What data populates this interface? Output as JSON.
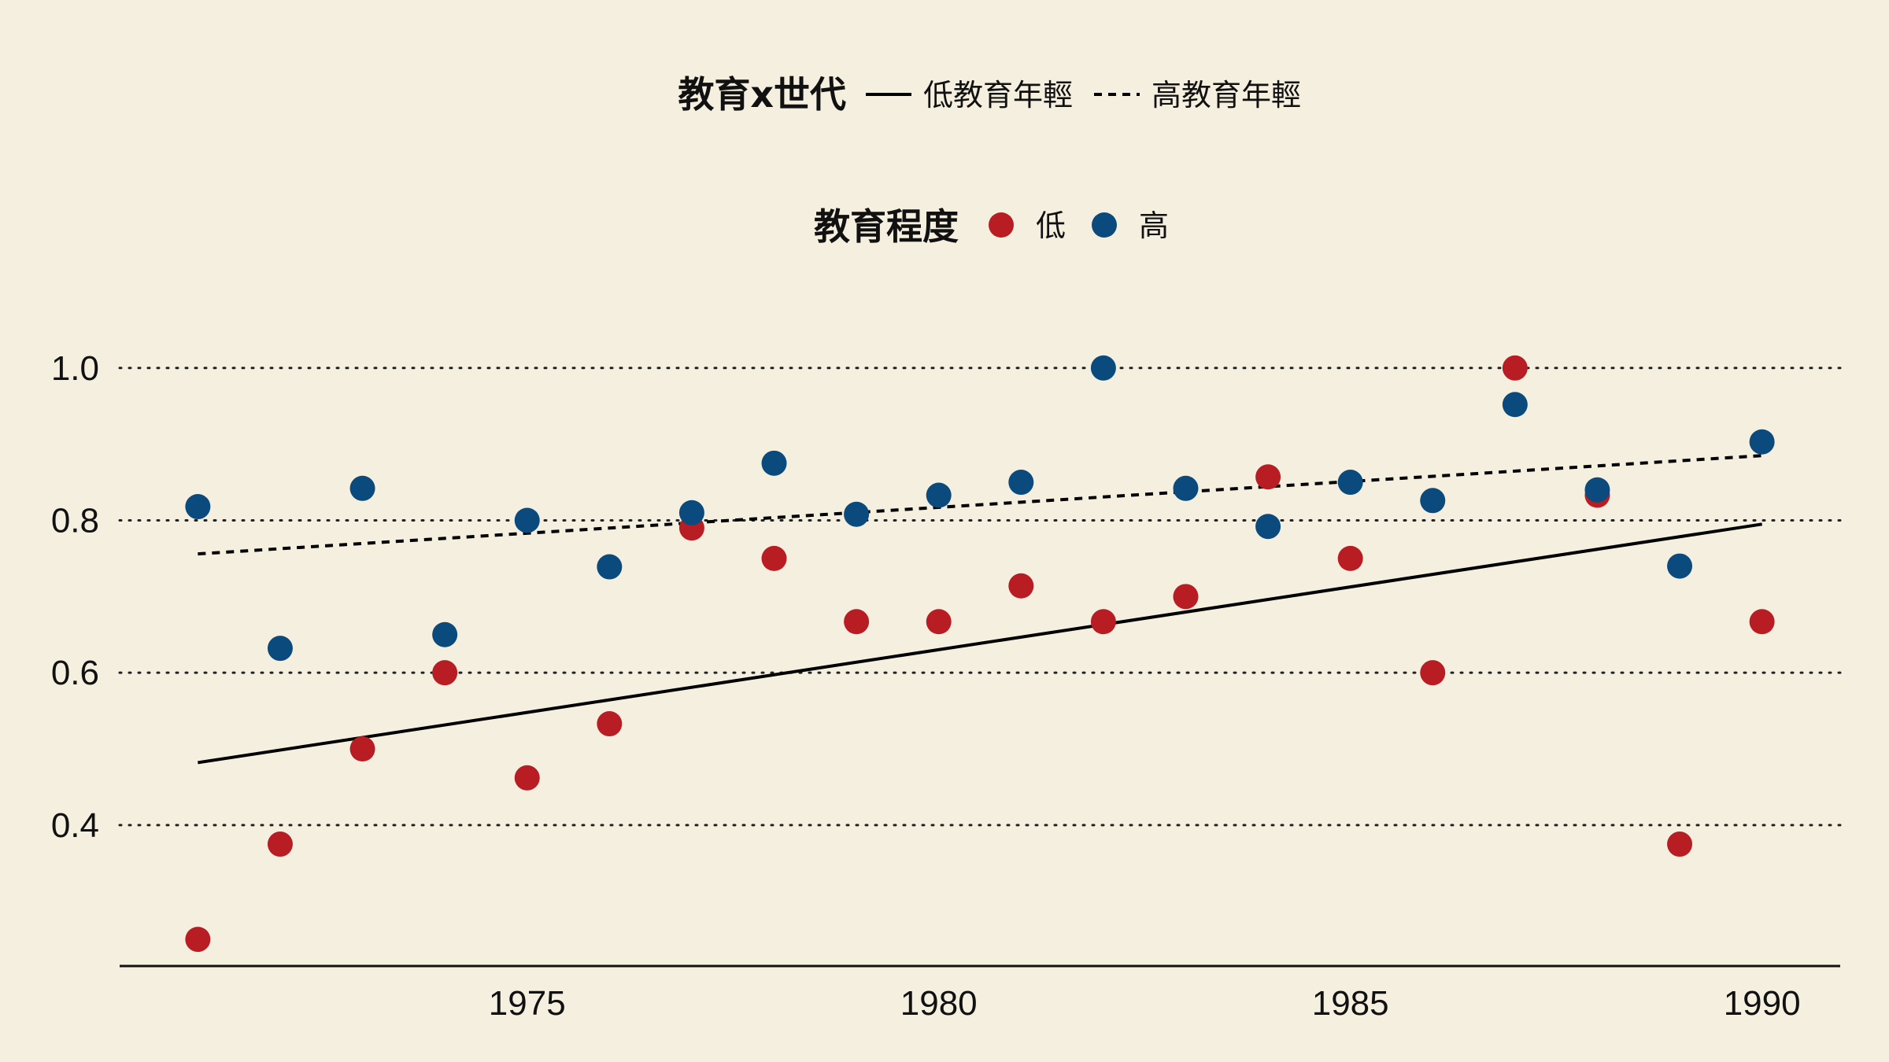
{
  "chart_data": {
    "type": "scatter",
    "title": "",
    "xlabel": "",
    "ylabel": "",
    "xlim": [
      1970.05,
      1990.95
    ],
    "ylim": [
      0.215,
      1.07
    ],
    "x_ticks": [
      1975,
      1980,
      1985,
      1990
    ],
    "y_ticks": [
      0.4,
      0.6,
      0.8,
      1.0
    ],
    "y_tick_labels": [
      "0.4",
      "0.6",
      "0.8",
      "1.0"
    ],
    "x_tick_labels": [
      "1975",
      "1980",
      "1985",
      "1990"
    ],
    "grid": "horizontal dotted",
    "background_color": "#f5efe0",
    "legend_lines": {
      "title": "教育x世代",
      "placement": "top-center",
      "entries": [
        {
          "label": "低教育年輕",
          "style": "solid"
        },
        {
          "label": "高教育年輕",
          "style": "dashed"
        }
      ]
    },
    "legend_points": {
      "title": "教育程度",
      "placement": "top-center",
      "entries": [
        {
          "label": "低",
          "color": "#b81d24"
        },
        {
          "label": "高",
          "color": "#0b4a7c"
        }
      ]
    },
    "series": [
      {
        "name": "低",
        "color": "#b81d24",
        "x": [
          1971,
          1972,
          1973,
          1974,
          1975,
          1976,
          1977,
          1978,
          1979,
          1980,
          1981,
          1982,
          1983,
          1984,
          1985,
          1986,
          1987,
          1988,
          1989,
          1990
        ],
        "y": [
          0.25,
          0.375,
          0.5,
          0.6,
          0.462,
          0.533,
          0.79,
          0.75,
          0.667,
          0.667,
          0.714,
          0.667,
          0.7,
          0.857,
          0.75,
          0.6,
          1.0,
          0.833,
          0.375,
          0.667
        ]
      },
      {
        "name": "高",
        "color": "#0b4a7c",
        "x": [
          1971,
          1972,
          1973,
          1974,
          1975,
          1976,
          1977,
          1978,
          1979,
          1980,
          1981,
          1982,
          1983,
          1984,
          1985,
          1986,
          1987,
          1988,
          1989,
          1990
        ],
        "y": [
          0.818,
          0.632,
          0.842,
          0.65,
          0.8,
          0.739,
          0.81,
          0.875,
          0.808,
          0.833,
          0.85,
          1.0,
          0.842,
          0.792,
          0.85,
          0.826,
          0.952,
          0.84,
          0.74,
          0.903
        ]
      }
    ],
    "fit_lines": [
      {
        "name": "低教育年輕",
        "style": "solid",
        "x": [
          1971,
          1990
        ],
        "y": [
          0.482,
          0.795
        ]
      },
      {
        "name": "高教育年輕",
        "style": "dashed",
        "x": [
          1971,
          1990
        ],
        "y": [
          0.756,
          0.885
        ]
      }
    ]
  }
}
